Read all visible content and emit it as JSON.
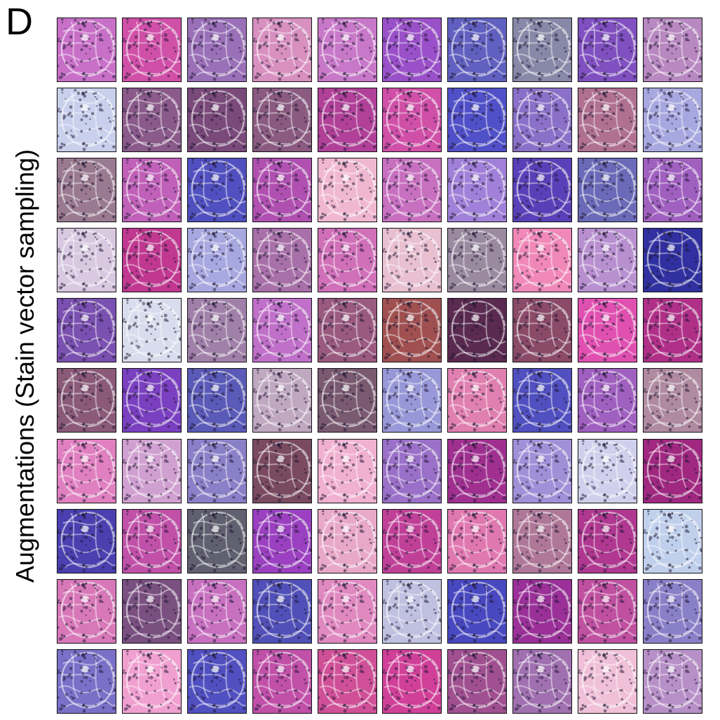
{
  "panel_label": "D",
  "y_axis_label": "Augmentations (Stain vector sampling)",
  "grid": {
    "rows": 10,
    "cols": 10,
    "tint_colors": [
      [
        "#c870c8",
        "#d050a8",
        "#9a70b8",
        "#d890c0",
        "#c878c8",
        "#9a50c8",
        "#6060c0",
        "#8888a8",
        "#8050c0",
        "#b888c0"
      ],
      [
        "#c8d0ec",
        "#8a5a8a",
        "#7a4a7a",
        "#8a5a80",
        "#b04098",
        "#d050a8",
        "#5050c8",
        "#8a70c8",
        "#b07090",
        "#a8a8e0"
      ],
      [
        "#9a7a90",
        "#c060b8",
        "#5050c0",
        "#b050b0",
        "#f0b8d0",
        "#c870c0",
        "#a080d8",
        "#5a40b8",
        "#6a6ab8",
        "#a060c0"
      ],
      [
        "#d8c8e0",
        "#c03890",
        "#a8a8e0",
        "#a870a8",
        "#d070b8",
        "#e8c0d0",
        "#9a8aa0",
        "#f088b8",
        "#b890d0",
        "#3030a0"
      ],
      [
        "#7a50b0",
        "#d8dcec",
        "#a080a8",
        "#c070c8",
        "#9a5a80",
        "#a05050",
        "#5a2a50",
        "#8a4a68",
        "#e050b0",
        "#b03088"
      ],
      [
        "#8a5a78",
        "#7a40c0",
        "#5a5ab8",
        "#c0a8c0",
        "#7a5a70",
        "#9898d8",
        "#e080b0",
        "#5050c0",
        "#a060c0",
        "#b08aa0"
      ],
      [
        "#e080c0",
        "#d0a0d0",
        "#8a80c8",
        "#7a4a60",
        "#f0b0d0",
        "#9a70c8",
        "#a03090",
        "#a090d8",
        "#d0d0ec",
        "#a02880"
      ],
      [
        "#4a40b0",
        "#c050a8",
        "#606070",
        "#9a40c0",
        "#e8a8c8",
        "#c04098",
        "#e078b0",
        "#b07898",
        "#b03890",
        "#c0d0ec"
      ],
      [
        "#d878b8",
        "#7a5080",
        "#c870c0",
        "#5050b8",
        "#e088c0",
        "#c0c0e0",
        "#4848c0",
        "#9a3098",
        "#c050a0",
        "#8a80c8"
      ],
      [
        "#7a70c8",
        "#f0a0d0",
        "#5050c0",
        "#c050a8",
        "#d05098",
        "#d04098",
        "#a05090",
        "#a070b0",
        "#f0c0d8",
        "#b890c8"
      ]
    ]
  }
}
